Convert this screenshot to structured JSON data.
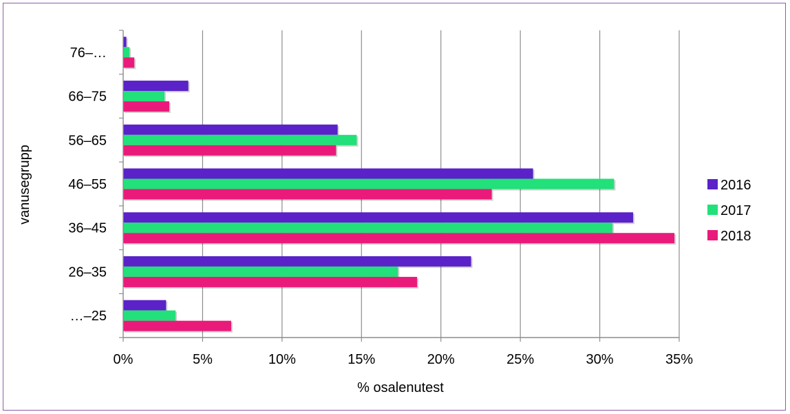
{
  "chart_data": {
    "type": "bar",
    "orientation": "horizontal",
    "categories": [
      "…–25",
      "26–35",
      "36–45",
      "46–55",
      "56–65",
      "66–75",
      "76–…"
    ],
    "series": [
      {
        "name": "2016",
        "color": "#5a22c8",
        "values": [
          2.7,
          21.9,
          32.1,
          25.8,
          13.5,
          4.1,
          0.2
        ]
      },
      {
        "name": "2017",
        "color": "#22e07a",
        "values": [
          3.3,
          17.3,
          30.8,
          30.9,
          14.7,
          2.6,
          0.4
        ]
      },
      {
        "name": "2018",
        "color": "#ea1a7a",
        "values": [
          6.8,
          18.5,
          34.7,
          23.2,
          13.4,
          2.9,
          0.7
        ]
      }
    ],
    "xlabel": "% osalenutest",
    "ylabel": "vanusegrupp",
    "xlim": [
      0,
      35
    ],
    "xticks": [
      "0%",
      "5%",
      "10%",
      "15%",
      "20%",
      "25%",
      "30%",
      "35%"
    ],
    "grid": "vertical",
    "legend": "right"
  }
}
